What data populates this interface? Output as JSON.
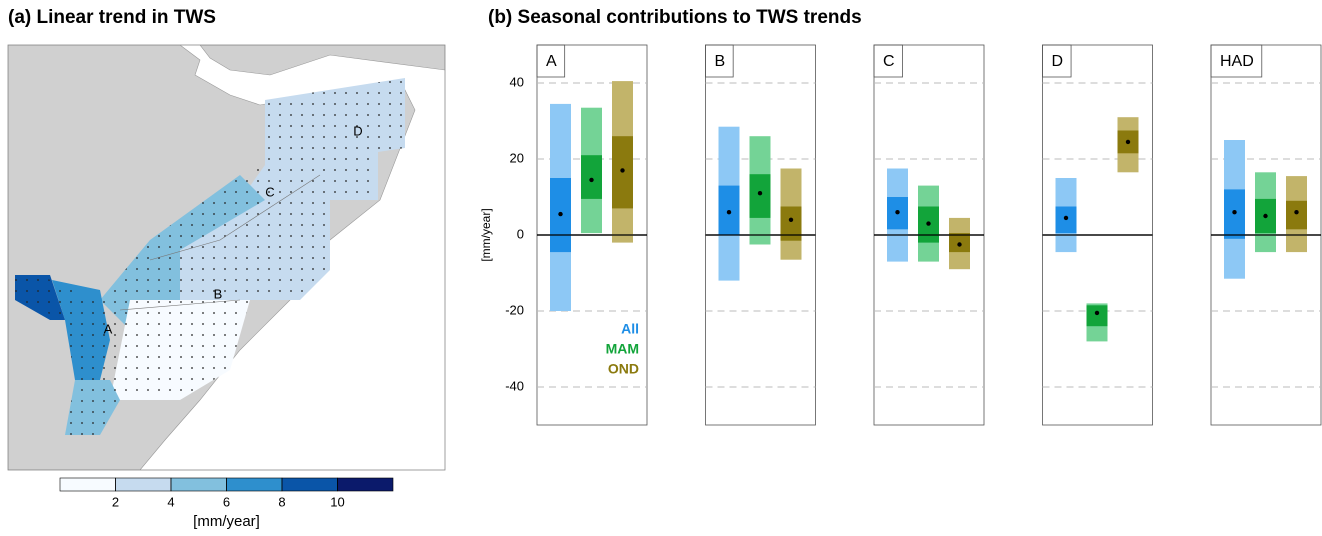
{
  "chart_data": [
    {
      "type": "map",
      "title": "(a) Linear trend in TWS",
      "region_labels": [
        "A",
        "B",
        "C",
        "D"
      ],
      "colorbar": {
        "lim": [
          0,
          12
        ],
        "ticks": [
          2,
          4,
          6,
          8,
          10
        ],
        "label": "[mm/year]",
        "colors": [
          "#f7fbff",
          "#c6dbef",
          "#82c0de",
          "#2e8fcd",
          "#0a55a8",
          "#0b1a6b"
        ]
      }
    },
    {
      "type": "range",
      "title": "(b) Seasonal contributions to TWS trends",
      "ylabel": "[mm/year]",
      "categories": [
        "A",
        "B",
        "C",
        "D",
        "HAD"
      ],
      "ylim": [
        -50,
        50
      ],
      "yticks": [
        -40,
        -20,
        0,
        20,
        40
      ],
      "grid": true,
      "series": [
        {
          "name": "All",
          "color": "#1e8ee6",
          "light": "#8dc8f5",
          "values": [
            5.5,
            6,
            6,
            4.5,
            6
          ],
          "inner_low": [
            -4.5,
            0,
            1.5,
            0.5,
            -1
          ],
          "inner_high": [
            15,
            13,
            10,
            7.5,
            12
          ],
          "outer_low": [
            -20,
            -12,
            -7,
            -4.5,
            -11.5
          ],
          "outer_high": [
            34.5,
            28.5,
            17.5,
            15,
            25
          ]
        },
        {
          "name": "MAM",
          "color": "#12a43a",
          "light": "#74d396",
          "values": [
            14.5,
            11,
            3,
            -20.5,
            5
          ],
          "inner_low": [
            9.5,
            4.5,
            -2,
            -24,
            0.5
          ],
          "inner_high": [
            21,
            16,
            7.5,
            -18.5,
            9.5
          ],
          "outer_low": [
            0.5,
            -2.5,
            -7,
            -28,
            -4.5
          ],
          "outer_high": [
            33.5,
            26,
            13,
            -18,
            16.5
          ]
        },
        {
          "name": "OND",
          "color": "#8b7a0e",
          "light": "#c2b46a",
          "values": [
            17,
            4,
            -2.5,
            24.5,
            6
          ],
          "inner_low": [
            7,
            -1.5,
            -4.5,
            21.5,
            1.5
          ],
          "inner_high": [
            26,
            7.5,
            0.5,
            27.5,
            9
          ],
          "outer_low": [
            -2,
            -6.5,
            -9,
            16.5,
            -4.5
          ],
          "outer_high": [
            40.5,
            17.5,
            4.5,
            31,
            15.5
          ]
        }
      ]
    }
  ]
}
